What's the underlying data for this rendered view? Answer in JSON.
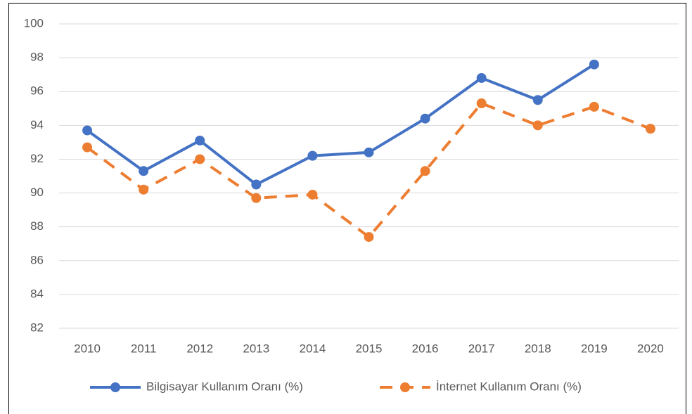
{
  "chart_data": {
    "type": "line",
    "categories": [
      "2010",
      "2011",
      "2012",
      "2013",
      "2014",
      "2015",
      "2016",
      "2017",
      "2018",
      "2019",
      "2020"
    ],
    "series": [
      {
        "name": "Bilgisayar Kullanım Oranı (%)",
        "color": "#4472c4",
        "dash": false,
        "values": [
          93.7,
          91.3,
          93.1,
          90.5,
          92.2,
          92.4,
          94.4,
          96.8,
          95.5,
          97.6,
          null
        ]
      },
      {
        "name": "İnternet Kullanım Oranı (%)",
        "color": "#ed7d31",
        "dash": true,
        "values": [
          92.7,
          90.2,
          92.0,
          89.7,
          89.9,
          87.4,
          91.3,
          95.3,
          94.0,
          95.1,
          93.8
        ]
      }
    ],
    "ylim": [
      82,
      100
    ],
    "yticks": [
      82,
      84,
      86,
      88,
      90,
      92,
      94,
      96,
      98,
      100
    ],
    "grid": true,
    "legend": "bottom"
  }
}
